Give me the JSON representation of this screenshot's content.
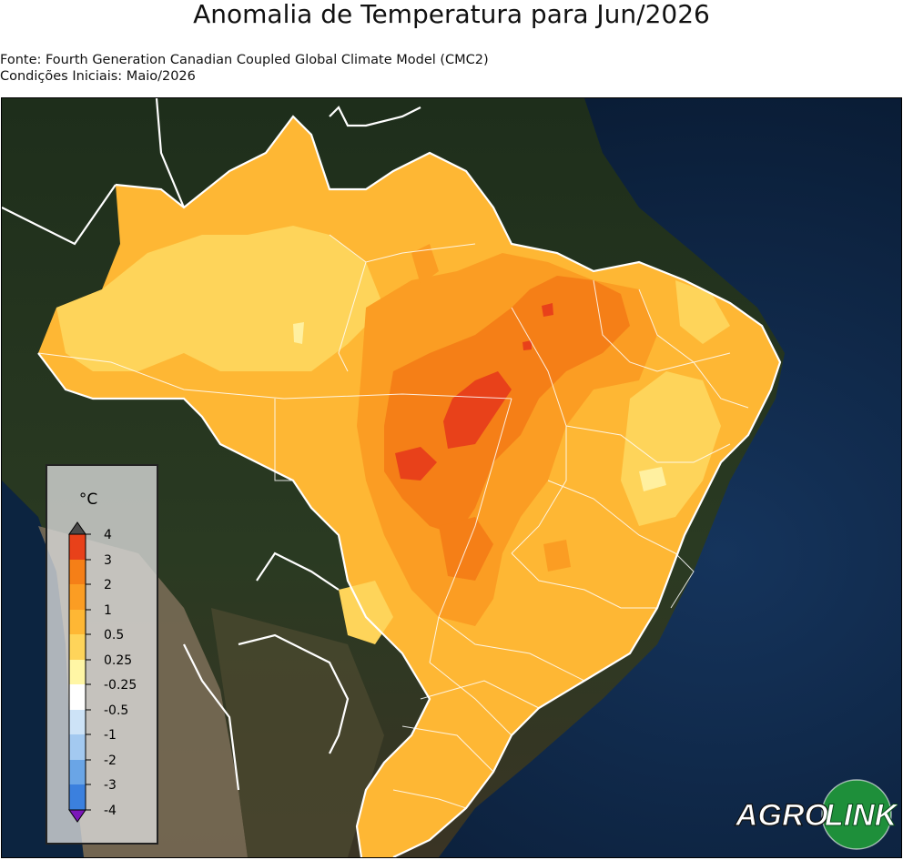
{
  "title": "Anomalia de Temperatura para Jun/2026",
  "source_line": "Fonte: Fourth Generation Canadian Coupled Global Climate Model (CMC2)",
  "init_line": "Condições Iniciais: Maio/2026",
  "legend": {
    "unit": "°C",
    "labels": [
      "4",
      "3",
      "2",
      "1",
      "0.5",
      "0.25",
      "-0.25",
      "-0.5",
      "-1",
      "-2",
      "-3",
      "-4"
    ],
    "colors_top_to_bottom": [
      "#e8411a",
      "#f57f17",
      "#fb9d23",
      "#feb734",
      "#fed45a",
      "#fff6a5",
      "#ffffff",
      "#cde3f7",
      "#a3c9f0",
      "#6aa5e6",
      "#3b80de",
      "#1d5fd3",
      "#7b16b9"
    ],
    "over_color": "#4a4a4a",
    "under_color": "#7b16b9"
  },
  "map_colors": {
    "ocean": "#0b1f3c",
    "land_dark": "#1b2b1a",
    "andes": "#8a7a66",
    "anomaly_05_1": "#fed45a",
    "anomaly_1_2": "#feb734",
    "anomaly_2_3": "#fb9d23",
    "anomaly_3_4": "#f57f17",
    "anomaly_4_plus": "#e8411a",
    "borders": "#ffffff"
  },
  "logo": {
    "text_left": "AGRO",
    "text_right": "LINK",
    "circle_color": "#1e8f3a"
  }
}
